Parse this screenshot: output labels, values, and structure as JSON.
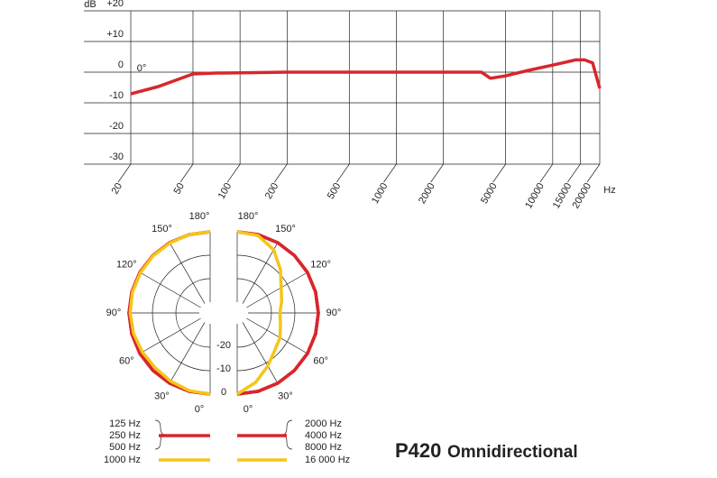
{
  "chart_data": [
    {
      "type": "line",
      "y_label": "dB",
      "x_label": "Hz",
      "log_x": true,
      "x": [
        20,
        30,
        50,
        70,
        100,
        200,
        1000,
        3500,
        4000,
        5000,
        7000,
        10000,
        14000,
        16000,
        18000,
        20000
      ],
      "series": [
        {
          "name": "0°",
          "color": "#d8262c",
          "values": [
            -7.1,
            -4.7,
            -0.6,
            -0.3,
            -0.2,
            0,
            0,
            0,
            -2,
            -1.2,
            0.6,
            2.3,
            4,
            4,
            3,
            -5.3
          ]
        }
      ],
      "xlim": [
        20,
        20000
      ],
      "xticks": [
        20,
        50,
        100,
        200,
        500,
        1000,
        2000,
        5000,
        10000,
        15000,
        20000
      ],
      "ylim": [
        -30,
        20
      ],
      "yticks": [
        {
          "value": 20,
          "label": "+20"
        },
        {
          "value": 10,
          "label": "+10"
        },
        0,
        -10,
        -20,
        -30
      ],
      "grid": true
    },
    {
      "type": "polar",
      "theta": [
        0,
        15,
        30,
        45,
        60,
        75,
        90,
        105,
        120,
        135,
        150,
        165,
        180
      ],
      "thetaticks": [
        {
          "value": 0,
          "label": "0°"
        },
        {
          "value": 30,
          "label": "30°"
        },
        {
          "value": 60,
          "label": "60°"
        },
        {
          "value": 90,
          "label": "90°"
        },
        {
          "value": 120,
          "label": "120°"
        },
        {
          "value": 150,
          "label": "150°"
        },
        {
          "value": 180,
          "label": "180°"
        }
      ],
      "rlim": [
        -30,
        0
      ],
      "rticks": [
        -20,
        -10,
        0
      ],
      "series": [
        {
          "name": "125 Hz",
          "color": "#d8262c",
          "side": "left",
          "values": [
            0,
            0,
            0,
            0,
            0,
            0,
            0,
            0,
            0,
            0,
            0,
            0,
            0
          ]
        },
        {
          "name": "250 Hz",
          "color": "#d8262c",
          "side": "left",
          "values": [
            0,
            0,
            0,
            0,
            0,
            0,
            0,
            0,
            0,
            0,
            0,
            0,
            0
          ]
        },
        {
          "name": "500 Hz",
          "color": "#d8262c",
          "side": "left",
          "values": [
            0,
            0,
            0,
            0,
            0,
            0,
            0,
            0,
            0,
            0,
            0,
            0,
            0
          ]
        },
        {
          "name": "1000 Hz",
          "color": "#f5c518",
          "side": "left",
          "values": [
            0,
            -0.3,
            -1,
            -1.5,
            -1.2,
            -0.8,
            -0.5,
            -0.3,
            -0.3,
            -0.2,
            -0.2,
            0,
            0
          ]
        },
        {
          "name": "2000 Hz",
          "color": "#d8262c",
          "side": "right",
          "values": [
            0,
            0,
            0,
            0,
            0,
            0,
            0,
            0,
            0,
            0,
            0,
            0,
            0
          ]
        },
        {
          "name": "4000 Hz",
          "color": "#d8262c",
          "side": "right",
          "values": [
            0,
            0,
            0,
            0,
            0,
            0,
            0,
            0,
            0,
            0,
            0,
            0,
            0
          ]
        },
        {
          "name": "8000 Hz",
          "color": "#d8262c",
          "side": "right",
          "values": [
            0,
            0,
            0,
            0,
            0,
            0,
            0,
            0,
            0,
            0,
            0,
            0,
            0
          ]
        },
        {
          "name": "16 000 Hz",
          "color": "#f5c518",
          "side": "right",
          "values": [
            0,
            -4,
            -8.5,
            -12,
            -13.5,
            -15.5,
            -16.4,
            -15,
            -13,
            -8.5,
            -3.5,
            -0.4,
            0
          ]
        }
      ]
    }
  ],
  "product": {
    "model": "P420",
    "pattern": "Omnidirectional"
  }
}
